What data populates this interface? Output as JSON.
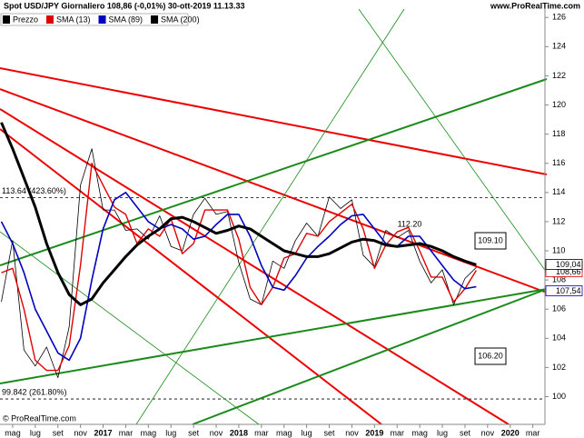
{
  "chart_data": {
    "type": "line",
    "title": "Spot USD/JPY Giornaliero 108,86 (-0,01%) 30-ott-2019 11.13.33",
    "source": "www.ProRealTime.com",
    "footer": "© ProRealTime.com",
    "categories": [
      null,
      "mag",
      null,
      "lug",
      null,
      "set",
      null,
      "nov",
      null,
      "2017",
      null,
      "mar",
      null,
      "mag",
      null,
      "lug",
      null,
      "set",
      null,
      "nov",
      null,
      "2018",
      null,
      "mar",
      null,
      "mag",
      null,
      "lug",
      null,
      "set",
      null,
      "nov",
      null,
      "2019",
      null,
      "mar",
      null,
      "mag",
      null,
      "lug",
      null,
      "set",
      null,
      "nov",
      null,
      "2020",
      null,
      "mar"
    ],
    "series": [
      {
        "name": "Prezzo",
        "color": "#000000",
        "last_label": "108,86",
        "values": [
          106.5,
          110.7,
          103.2,
          102.1,
          103.4,
          101.3,
          104.8,
          114.5,
          117.0,
          112.8,
          112.8,
          111.4,
          111.5,
          110.8,
          112.4,
          110.3,
          110.0,
          112.5,
          113.6,
          112.5,
          112.7,
          109.2,
          106.7,
          106.3,
          109.3,
          108.8,
          110.7,
          111.9,
          111.0,
          113.7,
          112.9,
          113.5,
          109.7,
          108.9,
          111.4,
          110.9,
          111.4,
          109.3,
          107.8,
          108.7,
          106.3,
          108.1,
          108.86,
          null,
          null,
          null,
          null,
          null
        ]
      },
      {
        "name": "SMA (13)",
        "color": "#e00000",
        "last_label": "108,66",
        "values": [
          108.5,
          108.8,
          106.0,
          102.5,
          101.8,
          101.8,
          103.5,
          109.0,
          116.0,
          114.5,
          113.0,
          112.5,
          110.5,
          111.5,
          111.0,
          112.2,
          109.8,
          110.5,
          112.8,
          112.8,
          112.8,
          110.8,
          107.5,
          106.3,
          107.5,
          109.5,
          109.8,
          111.2,
          111.0,
          112.0,
          112.6,
          113.2,
          111.5,
          108.8,
          110.4,
          111.3,
          111.6,
          110.0,
          108.2,
          108.2,
          106.5,
          107.4,
          108.66,
          null,
          null,
          null,
          null,
          null
        ]
      },
      {
        "name": "SMA (89)",
        "color": "#0000c0",
        "last_label": "107,54",
        "values": [
          112.0,
          110.5,
          108.5,
          106.0,
          104.5,
          103.0,
          102.5,
          104.0,
          108.0,
          111.5,
          113.5,
          114.0,
          113.0,
          112.0,
          111.5,
          111.8,
          111.5,
          110.8,
          111.0,
          111.8,
          112.5,
          112.5,
          111.0,
          109.0,
          107.5,
          107.3,
          108.3,
          109.5,
          110.3,
          111.0,
          111.8,
          112.4,
          112.5,
          111.5,
          110.5,
          110.3,
          111.0,
          111.0,
          110.0,
          109.0,
          108.0,
          107.4,
          107.54,
          null,
          null,
          null,
          null,
          null
        ]
      },
      {
        "name": "SMA (200)",
        "color": "#000000",
        "last_label": "109,04",
        "values": [
          118.8,
          117.0,
          115.0,
          113.0,
          110.5,
          108.5,
          107.0,
          106.3,
          106.7,
          107.8,
          108.7,
          109.6,
          110.4,
          111.0,
          111.5,
          112.2,
          112.3,
          112.0,
          111.6,
          111.2,
          111.4,
          111.7,
          111.5,
          111.0,
          110.5,
          110.0,
          109.8,
          109.6,
          109.6,
          109.8,
          110.2,
          110.6,
          110.8,
          110.7,
          110.4,
          110.3,
          110.4,
          110.5,
          110.3,
          110.0,
          109.6,
          109.3,
          109.04,
          null,
          null,
          null,
          null,
          null
        ]
      }
    ],
    "levels": [
      {
        "value": 113.64,
        "label": "113.64 (423.60%)"
      },
      {
        "value": 99.842,
        "label": "99.842 (261.80%)"
      }
    ],
    "annotations": [
      "112.20",
      "109.10",
      "106.20"
    ],
    "ylim": [
      98.1,
      126.7
    ],
    "yticks": [
      100,
      102,
      104,
      106,
      108,
      110,
      112,
      114,
      116,
      118,
      120,
      122,
      124,
      126
    ],
    "grid": false
  }
}
